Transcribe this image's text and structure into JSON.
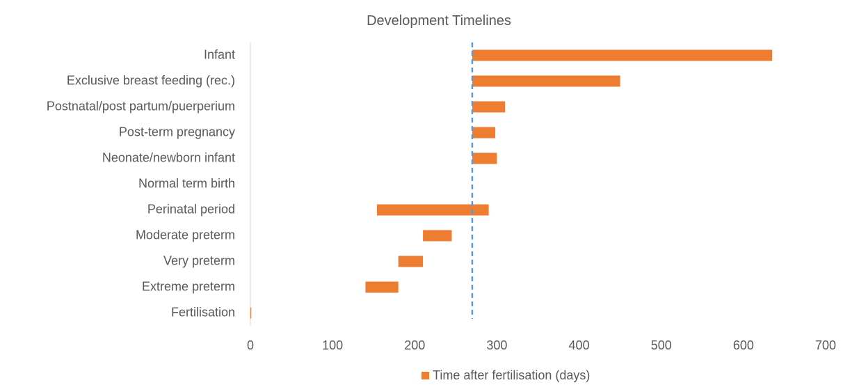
{
  "chart_data": {
    "type": "bar",
    "orientation": "horizontal",
    "stacked": "floating-range",
    "title": "Development Timelines",
    "xlabel": "",
    "ylabel": "",
    "xlim": [
      0,
      700
    ],
    "xticks": [
      0,
      100,
      200,
      300,
      400,
      500,
      600,
      700
    ],
    "xtick_labels": [
      "0",
      "100",
      "200",
      "300",
      "400",
      "500",
      "600",
      "700"
    ],
    "categories": [
      "Infant",
      "Exclusive breast feeding (rec.)",
      "Postnatal/post partum/puerperium",
      "Post-term pregnancy",
      "Neonate/newborn infant",
      "Normal term birth",
      "Perinatal period",
      "Moderate preterm",
      "Very preterm",
      "Extreme preterm",
      "Fertilisation"
    ],
    "series": [
      {
        "name": "Time after fertilisation (days)",
        "color": "#ed7d31",
        "values": [
          {
            "start": 270,
            "end": 635
          },
          {
            "start": 270,
            "end": 450
          },
          {
            "start": 270,
            "end": 310
          },
          {
            "start": 270,
            "end": 298
          },
          {
            "start": 270,
            "end": 300
          },
          {
            "start": 270,
            "end": 270
          },
          {
            "start": 154,
            "end": 290
          },
          {
            "start": 210,
            "end": 245
          },
          {
            "start": 180,
            "end": 210
          },
          {
            "start": 140,
            "end": 180
          },
          {
            "start": 0,
            "end": 1
          }
        ]
      }
    ],
    "reference_line": {
      "x": 270,
      "color": "#5b9bd5",
      "style": "dashed"
    },
    "grid": false,
    "legend": {
      "position": "bottom"
    },
    "colors": {
      "text": "#595959",
      "axis": "#d9d9d9"
    }
  }
}
